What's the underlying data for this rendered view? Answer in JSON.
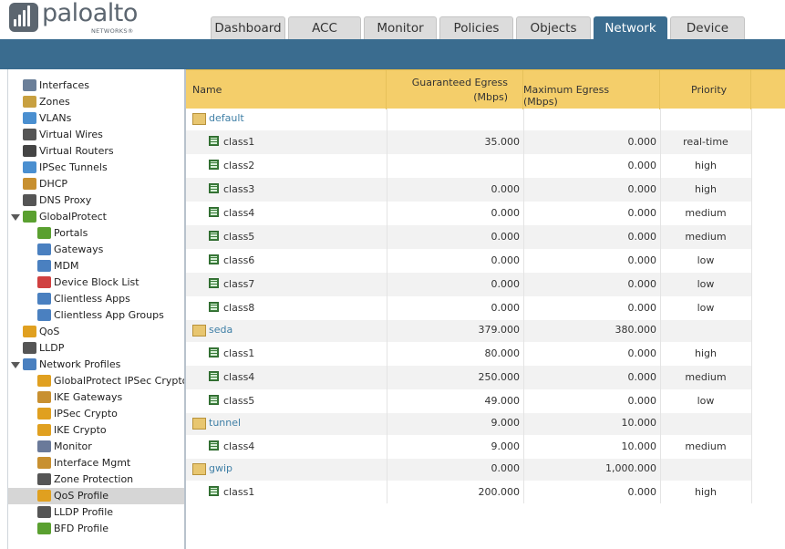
{
  "brand": {
    "name": "paloalto",
    "sub": "NETWORKS®"
  },
  "tabs": [
    {
      "label": "Dashboard",
      "active": false
    },
    {
      "label": "ACC",
      "active": false
    },
    {
      "label": "Monitor",
      "active": false
    },
    {
      "label": "Policies",
      "active": false
    },
    {
      "label": "Objects",
      "active": false
    },
    {
      "label": "Network",
      "active": true
    },
    {
      "label": "Device",
      "active": false
    }
  ],
  "sidebar": {
    "items": [
      {
        "label": "Interfaces",
        "icon": "interfaces-icon",
        "color": "#6b7f99"
      },
      {
        "label": "Zones",
        "icon": "zones-icon",
        "color": "#c8a040"
      },
      {
        "label": "VLANs",
        "icon": "vlans-icon",
        "color": "#4a8fd0"
      },
      {
        "label": "Virtual Wires",
        "icon": "virtual-wires-icon",
        "color": "#555555"
      },
      {
        "label": "Virtual Routers",
        "icon": "virtual-routers-icon",
        "color": "#444444"
      },
      {
        "label": "IPSec Tunnels",
        "icon": "ipsec-tunnels-icon",
        "color": "#4a8fd0"
      },
      {
        "label": "DHCP",
        "icon": "dhcp-icon",
        "color": "#c89030"
      },
      {
        "label": "DNS Proxy",
        "icon": "dns-proxy-icon",
        "color": "#555555"
      },
      {
        "label": "GlobalProtect",
        "icon": "globalprotect-icon",
        "color": "#5aa030"
      },
      {
        "label": "Portals",
        "icon": "portals-icon",
        "color": "#5aa030"
      },
      {
        "label": "Gateways",
        "icon": "gateways-icon",
        "color": "#4a80c0"
      },
      {
        "label": "MDM",
        "icon": "mdm-icon",
        "color": "#4a80c0"
      },
      {
        "label": "Device Block List",
        "icon": "device-block-list-icon",
        "color": "#d04040"
      },
      {
        "label": "Clientless Apps",
        "icon": "clientless-apps-icon",
        "color": "#4a80c0"
      },
      {
        "label": "Clientless App Groups",
        "icon": "clientless-app-groups-icon",
        "color": "#4a80c0"
      },
      {
        "label": "QoS",
        "icon": "qos-icon",
        "color": "#e0a020"
      },
      {
        "label": "LLDP",
        "icon": "lldp-icon",
        "color": "#555555"
      },
      {
        "label": "Network Profiles",
        "icon": "network-profiles-icon",
        "color": "#4a80c0"
      },
      {
        "label": "GlobalProtect IPSec Crypto",
        "icon": "lock-icon",
        "color": "#e0a020"
      },
      {
        "label": "IKE Gateways",
        "icon": "ike-gateways-icon",
        "color": "#c89030"
      },
      {
        "label": "IPSec Crypto",
        "icon": "lock-icon",
        "color": "#e0a020"
      },
      {
        "label": "IKE Crypto",
        "icon": "lock-icon",
        "color": "#e0a020"
      },
      {
        "label": "Monitor",
        "icon": "monitor-icon",
        "color": "#6a7a9a"
      },
      {
        "label": "Interface Mgmt",
        "icon": "interface-mgmt-icon",
        "color": "#c89030"
      },
      {
        "label": "Zone Protection",
        "icon": "zone-protection-icon",
        "color": "#555555"
      },
      {
        "label": "QoS Profile",
        "icon": "qos-profile-icon",
        "color": "#e0a020"
      },
      {
        "label": "LLDP Profile",
        "icon": "lldp-profile-icon",
        "color": "#555555"
      },
      {
        "label": "BFD Profile",
        "icon": "bfd-profile-icon",
        "color": "#5aa030"
      }
    ],
    "selected": "QoS Profile"
  },
  "table": {
    "columns": [
      "Name",
      "Guaranteed Egress (Mbps)",
      "Maximum Egress (Mbps)",
      "Priority"
    ],
    "column_lines": {
      "ge_line1": "Guaranteed Egress",
      "ge_line2": "(Mbps)"
    },
    "rows": [
      {
        "kind": "group",
        "name": "default",
        "guaranteed": "",
        "maximum": "",
        "priority": ""
      },
      {
        "kind": "class",
        "name": "class1",
        "guaranteed": "35.000",
        "maximum": "0.000",
        "priority": "real-time"
      },
      {
        "kind": "class",
        "name": "class2",
        "guaranteed": "",
        "maximum": "0.000",
        "priority": "high"
      },
      {
        "kind": "class",
        "name": "class3",
        "guaranteed": "0.000",
        "maximum": "0.000",
        "priority": "high"
      },
      {
        "kind": "class",
        "name": "class4",
        "guaranteed": "0.000",
        "maximum": "0.000",
        "priority": "medium"
      },
      {
        "kind": "class",
        "name": "class5",
        "guaranteed": "0.000",
        "maximum": "0.000",
        "priority": "medium"
      },
      {
        "kind": "class",
        "name": "class6",
        "guaranteed": "0.000",
        "maximum": "0.000",
        "priority": "low"
      },
      {
        "kind": "class",
        "name": "class7",
        "guaranteed": "0.000",
        "maximum": "0.000",
        "priority": "low"
      },
      {
        "kind": "class",
        "name": "class8",
        "guaranteed": "0.000",
        "maximum": "0.000",
        "priority": "low"
      },
      {
        "kind": "group",
        "name": "seda",
        "guaranteed": "379.000",
        "maximum": "380.000",
        "priority": ""
      },
      {
        "kind": "class",
        "name": "class1",
        "guaranteed": "80.000",
        "maximum": "0.000",
        "priority": "high"
      },
      {
        "kind": "class",
        "name": "class4",
        "guaranteed": "250.000",
        "maximum": "0.000",
        "priority": "medium"
      },
      {
        "kind": "class",
        "name": "class5",
        "guaranteed": "49.000",
        "maximum": "0.000",
        "priority": "low"
      },
      {
        "kind": "group",
        "name": "tunnel",
        "guaranteed": "9.000",
        "maximum": "10.000",
        "priority": ""
      },
      {
        "kind": "class",
        "name": "class4",
        "guaranteed": "9.000",
        "maximum": "10.000",
        "priority": "medium"
      },
      {
        "kind": "group",
        "name": "gwip",
        "guaranteed": "0.000",
        "maximum": "1,000.000",
        "priority": ""
      },
      {
        "kind": "class",
        "name": "class1",
        "guaranteed": "200.000",
        "maximum": "0.000",
        "priority": "high"
      }
    ]
  },
  "colors": {
    "accent": "#3a6c8f",
    "header": "#f4ce6a",
    "link": "#3f7fa6"
  }
}
